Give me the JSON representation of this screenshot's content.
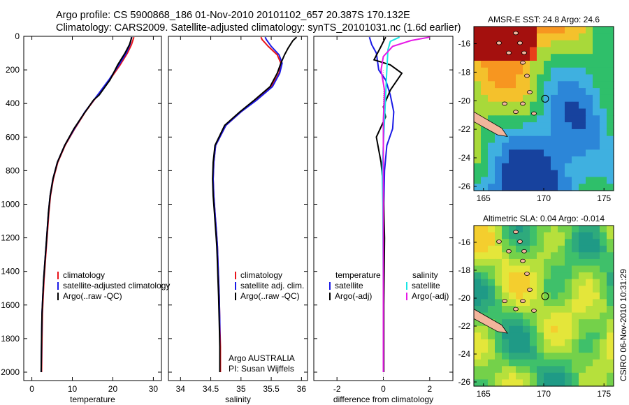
{
  "header": {
    "line1": "Argo profile: CS 5900868_186 01-Nov-2010 20101102_657 20.387S 170.132E",
    "line2": "Climatology: CARS2009. Satellite-adjusted climatology: synTS_20101031.nc (1.6d earlier)"
  },
  "colors": {
    "climatology": "#e8141a",
    "satellite": "#1a1ae6",
    "argo": "#000000",
    "satellite_sal": "#19e6e6",
    "argo_sal": "#e619e6"
  },
  "footer": {
    "credit_line1": "Argo AUSTRALIA",
    "credit_line2": "PI: Susan Wijffels",
    "stamp": "CSIRO 06-Nov-2010 10:31:29"
  },
  "chart_data": [
    {
      "type": "line",
      "xlabel": "temperature",
      "xlim": [
        -2,
        32
      ],
      "ylim": [
        2050,
        0
      ],
      "xticks": [
        "0",
        "10",
        "20",
        "30"
      ],
      "yticks": [
        "0",
        "200",
        "400",
        "600",
        "800",
        "1000",
        "1200",
        "1400",
        "1600",
        "1800",
        "2000"
      ],
      "legend": [
        "climatology",
        "satellite-adjusted climatology",
        "Argo(..raw -QC)"
      ],
      "series": [
        {
          "name": "climatology",
          "color": "#e8141a",
          "x": [
            25.2,
            25.0,
            24.6,
            23.6,
            21.8,
            19.2,
            16.3,
            13.2,
            10.6,
            8.2,
            6.4,
            5.3,
            4.6,
            4.2,
            3.9,
            3.6,
            3.3,
            3.0,
            2.8,
            2.6,
            2.5,
            2.4
          ],
          "y": [
            5,
            20,
            50,
            100,
            170,
            260,
            350,
            450,
            550,
            650,
            750,
            850,
            950,
            1050,
            1150,
            1250,
            1350,
            1450,
            1550,
            1650,
            1800,
            2000
          ]
        },
        {
          "name": "satellite-adjusted climatology",
          "color": "#1a1ae6",
          "x": [
            24.6,
            24.5,
            24.2,
            23.3,
            21.5,
            19.0,
            16.2,
            13.1,
            10.5,
            8.1,
            6.3,
            5.2,
            4.5,
            4.1,
            3.8,
            3.5,
            3.2,
            2.9,
            2.7,
            2.5,
            2.4,
            2.3
          ],
          "y": [
            5,
            20,
            50,
            100,
            170,
            260,
            350,
            450,
            550,
            650,
            750,
            850,
            950,
            1050,
            1150,
            1250,
            1350,
            1450,
            1550,
            1650,
            1800,
            2000
          ]
        },
        {
          "name": "Argo(..raw -QC)",
          "color": "#000000",
          "x": [
            24.7,
            24.5,
            24.1,
            23.0,
            21.2,
            19.3,
            16.6,
            15.2,
            12.9,
            10.4,
            8.1,
            6.3,
            5.2,
            4.5,
            4.1,
            3.8,
            3.5,
            3.2,
            2.9,
            2.7,
            2.5,
            2.4,
            2.3
          ],
          "y": [
            5,
            20,
            50,
            100,
            170,
            260,
            350,
            380,
            460,
            550,
            650,
            750,
            850,
            950,
            1050,
            1150,
            1250,
            1350,
            1450,
            1550,
            1650,
            1800,
            2000
          ]
        }
      ]
    },
    {
      "type": "line",
      "xlabel": "salinity",
      "xlim": [
        33.8,
        36.1
      ],
      "ylim": [
        2050,
        0
      ],
      "xticks": [
        "34",
        "34.5",
        "35",
        "35.5",
        "36"
      ],
      "legend": [
        "climatology",
        "satellite adj. clim.",
        "Argo(..raw -QC)"
      ],
      "series": [
        {
          "name": "climatology",
          "color": "#e8141a",
          "x": [
            35.33,
            35.35,
            35.45,
            35.6,
            35.66,
            35.63,
            35.5,
            35.25,
            35.0,
            34.75,
            34.58,
            34.55,
            34.54,
            34.55,
            34.57,
            34.59,
            34.61,
            34.62,
            34.63,
            34.64,
            34.65,
            34.66,
            34.66
          ],
          "y": [
            5,
            20,
            60,
            110,
            160,
            220,
            300,
            380,
            450,
            530,
            650,
            750,
            850,
            950,
            1050,
            1150,
            1250,
            1350,
            1450,
            1550,
            1700,
            1850,
            2000
          ]
        },
        {
          "name": "satellite adj. clim.",
          "color": "#1a1ae6",
          "x": [
            35.4,
            35.42,
            35.5,
            35.63,
            35.68,
            35.64,
            35.52,
            35.26,
            35.0,
            34.75,
            34.58,
            34.55,
            34.54,
            34.55,
            34.57,
            34.59,
            34.61,
            34.62,
            34.63,
            34.64,
            34.65,
            34.65,
            34.65
          ],
          "y": [
            5,
            20,
            60,
            110,
            160,
            220,
            300,
            380,
            450,
            530,
            650,
            750,
            850,
            950,
            1050,
            1150,
            1250,
            1350,
            1450,
            1550,
            1700,
            1850,
            2000
          ]
        },
        {
          "name": "Argo(..raw -QC)",
          "color": "#000000",
          "x": [
            35.92,
            35.86,
            35.78,
            35.72,
            35.66,
            35.6,
            35.48,
            35.22,
            34.98,
            34.73,
            34.57,
            34.54,
            34.53,
            34.54,
            34.56,
            34.58,
            34.6,
            34.61,
            34.62,
            34.63,
            34.64,
            34.65,
            34.65
          ],
          "y": [
            5,
            25,
            70,
            110,
            160,
            220,
            300,
            380,
            450,
            530,
            650,
            750,
            850,
            950,
            1050,
            1150,
            1250,
            1350,
            1450,
            1550,
            1700,
            1850,
            2000
          ]
        }
      ]
    },
    {
      "type": "line",
      "xlabel": "difference from climatology",
      "xlim": [
        -3,
        3
      ],
      "ylim": [
        2050,
        0
      ],
      "xticks": [
        "-2",
        "0",
        "2"
      ],
      "legend": [
        "temperature",
        "satellite",
        "Argo(-adj)",
        "salinity",
        "satellite",
        "Argo(-adj)"
      ],
      "series": [
        {
          "name": "satellite",
          "color": "#1a1ae6",
          "x": [
            -0.6,
            -0.5,
            -0.3,
            -0.2,
            0.1,
            0.3,
            0.45,
            0.4,
            0.15,
            0.05,
            0.02,
            0.01,
            0.0,
            0.0
          ],
          "y": [
            5,
            50,
            100,
            200,
            260,
            350,
            450,
            550,
            650,
            800,
            1000,
            1400,
            1800,
            2000
          ]
        },
        {
          "name": "Argo(-adj)",
          "color": "#000000",
          "x": [
            0.1,
            -0.1,
            -0.4,
            0.3,
            0.8,
            0.3,
            0.0,
            0.1,
            -0.3,
            -0.1,
            0.0,
            0.05,
            0.02,
            0.02
          ],
          "y": [
            5,
            60,
            140,
            170,
            220,
            320,
            420,
            480,
            600,
            750,
            900,
            1200,
            1600,
            2000
          ]
        },
        {
          "name": "satellite",
          "color": "#19e6e6",
          "x": [
            0.7,
            0.3,
            0.2,
            0.15,
            0.1,
            0.05,
            0.0,
            -0.05,
            -0.02,
            0.0,
            0.0
          ],
          "y": [
            5,
            30,
            80,
            200,
            350,
            500,
            650,
            800,
            1000,
            1500,
            2000
          ]
        },
        {
          "name": "Argo(-adj)",
          "color": "#e619e6",
          "x": [
            2.0,
            1.2,
            0.4,
            0.0,
            -0.1,
            0.05,
            0.0,
            0.0,
            0.0
          ],
          "y": [
            5,
            25,
            60,
            120,
            200,
            320,
            500,
            1000,
            2000
          ]
        }
      ]
    },
    {
      "type": "heatmap",
      "title": "AMSR-E SST: 24.8 Argo: 24.6",
      "xticks": [
        "165",
        "170",
        "175"
      ],
      "yticks": [
        "-16",
        "-18",
        "-20",
        "-22",
        "-24",
        "-26"
      ]
    },
    {
      "type": "heatmap",
      "title": "Altimetric SLA: 0.04 Argo: -0.014",
      "xticks": [
        "165",
        "170",
        "175"
      ],
      "yticks": [
        "-16",
        "-18",
        "-20",
        "-22",
        "-24",
        "-26"
      ]
    }
  ]
}
